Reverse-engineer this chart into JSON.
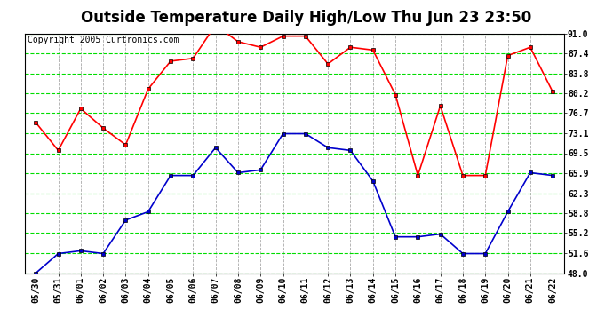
{
  "title": "Outside Temperature Daily High/Low Thu Jun 23 23:50",
  "copyright": "Copyright 2005 Curtronics.com",
  "x_labels": [
    "05/30",
    "05/31",
    "06/01",
    "06/02",
    "06/03",
    "06/04",
    "06/05",
    "06/06",
    "06/07",
    "06/08",
    "06/09",
    "06/10",
    "06/11",
    "06/12",
    "06/13",
    "06/14",
    "06/15",
    "06/16",
    "06/17",
    "06/18",
    "06/19",
    "06/20",
    "06/21",
    "06/22"
  ],
  "high_values": [
    75.0,
    70.0,
    77.5,
    74.0,
    71.0,
    81.0,
    86.0,
    86.5,
    92.5,
    89.5,
    88.5,
    90.5,
    90.5,
    85.5,
    88.5,
    88.0,
    80.0,
    65.5,
    78.0,
    65.5,
    65.5,
    87.0,
    88.5,
    80.5
  ],
  "low_values": [
    48.0,
    51.5,
    52.0,
    51.5,
    57.5,
    59.0,
    65.5,
    65.5,
    70.5,
    66.0,
    66.5,
    73.0,
    73.0,
    70.5,
    70.0,
    64.5,
    54.5,
    54.5,
    55.0,
    51.5,
    51.5,
    59.0,
    66.0,
    65.5
  ],
  "high_color": "#ff0000",
  "low_color": "#0000cc",
  "bg_color": "#ffffff",
  "plot_bg_color": "#ffffff",
  "grid_h_color": "#00dd00",
  "grid_v_color": "#aaaaaa",
  "ylim": [
    48.0,
    91.0
  ],
  "yticks": [
    48.0,
    51.6,
    55.2,
    58.8,
    62.3,
    65.9,
    69.5,
    73.1,
    76.7,
    80.2,
    83.8,
    87.4,
    91.0
  ],
  "title_fontsize": 12,
  "copyright_fontsize": 7,
  "tick_fontsize": 7,
  "marker": "s",
  "marker_size": 3,
  "linewidth": 1.2
}
